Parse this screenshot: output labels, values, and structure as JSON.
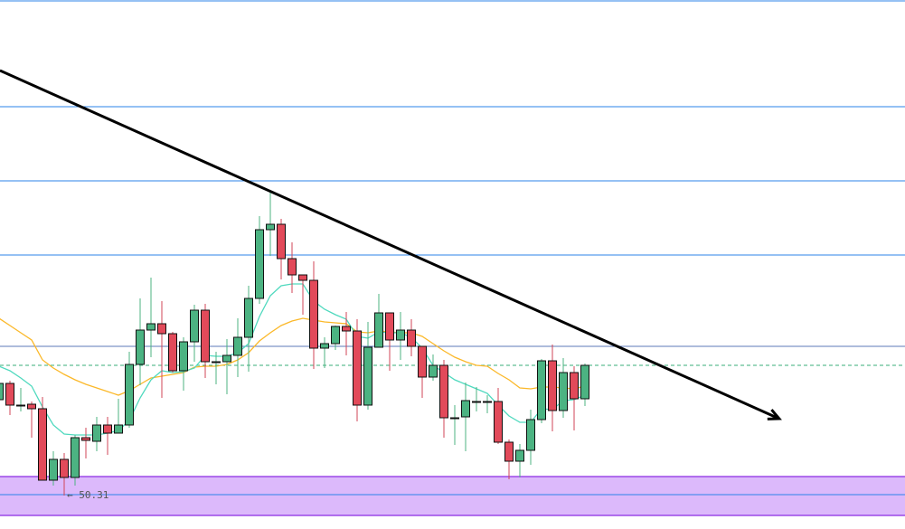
{
  "chart_data": {
    "type": "candlestick",
    "title": "",
    "xlabel": "",
    "ylabel": "",
    "ylim": [
      49.94,
      55.79
    ],
    "grid": false,
    "colors": {
      "up": "#4cb382",
      "down": "#e24a5a",
      "wick_up": "#4cb382",
      "wick_down": "#d04657",
      "ma_fast": "#4fd9be",
      "ma_slow": "#fbb829",
      "level_line": "#2b83e8",
      "resistance_line": "#5d79b8",
      "dashed_line": "#3aae7a",
      "zone_fill": "#dcb9fb",
      "zone_border": "#8a2be2",
      "trendline": "#000000"
    },
    "candles": [
      [
        51.37,
        51.59,
        51.33,
        51.55
      ],
      [
        51.55,
        51.58,
        51.2,
        51.31
      ],
      [
        51.31,
        51.5,
        51.24,
        51.31
      ],
      [
        51.32,
        51.35,
        50.95,
        51.27
      ],
      [
        51.27,
        51.4,
        50.48,
        50.48
      ],
      [
        50.48,
        50.8,
        50.42,
        50.71
      ],
      [
        50.71,
        50.78,
        50.31,
        50.51
      ],
      [
        50.51,
        50.98,
        50.42,
        50.95
      ],
      [
        50.95,
        51.06,
        50.72,
        50.92
      ],
      [
        50.91,
        51.18,
        50.8,
        51.09
      ],
      [
        51.09,
        51.18,
        50.76,
        51.0
      ],
      [
        51.0,
        51.38,
        51.0,
        51.09
      ],
      [
        51.09,
        51.9,
        51.06,
        51.76
      ],
      [
        51.76,
        52.49,
        51.53,
        52.14
      ],
      [
        52.14,
        52.72,
        51.84,
        52.21
      ],
      [
        52.21,
        52.46,
        51.39,
        52.1
      ],
      [
        52.1,
        52.12,
        51.67,
        51.69
      ],
      [
        51.69,
        52.06,
        51.47,
        52.01
      ],
      [
        52.01,
        52.42,
        51.79,
        52.36
      ],
      [
        52.36,
        52.43,
        51.61,
        51.79
      ],
      [
        51.79,
        51.9,
        51.54,
        51.79
      ],
      [
        51.79,
        52.04,
        51.43,
        51.86
      ],
      [
        51.86,
        52.27,
        51.62,
        52.06
      ],
      [
        52.06,
        52.63,
        51.68,
        52.49
      ],
      [
        52.49,
        53.4,
        52.43,
        53.25
      ],
      [
        53.25,
        53.66,
        52.96,
        53.31
      ],
      [
        53.31,
        53.37,
        52.7,
        52.93
      ],
      [
        52.93,
        53.11,
        52.55,
        52.75
      ],
      [
        52.75,
        52.75,
        52.31,
        52.69
      ],
      [
        52.69,
        52.9,
        51.71,
        51.94
      ],
      [
        51.94,
        52.06,
        51.72,
        51.99
      ],
      [
        51.99,
        52.19,
        51.92,
        52.18
      ],
      [
        52.18,
        52.34,
        51.86,
        52.13
      ],
      [
        52.13,
        52.26,
        51.13,
        51.31
      ],
      [
        51.31,
        52.23,
        51.26,
        51.95
      ],
      [
        51.95,
        52.54,
        51.95,
        52.33
      ],
      [
        52.33,
        52.33,
        51.69,
        52.03
      ],
      [
        52.03,
        52.34,
        51.81,
        52.14
      ],
      [
        52.14,
        52.26,
        51.85,
        51.96
      ],
      [
        51.96,
        51.96,
        51.39,
        51.62
      ],
      [
        51.62,
        51.87,
        51.58,
        51.75
      ],
      [
        51.75,
        51.81,
        50.95,
        51.17
      ],
      [
        51.17,
        51.31,
        50.87,
        51.17
      ],
      [
        51.18,
        51.56,
        50.8,
        51.36
      ],
      [
        51.35,
        51.51,
        51.24,
        51.35
      ],
      [
        51.35,
        51.42,
        51.22,
        51.35
      ],
      [
        51.35,
        51.5,
        50.88,
        50.9
      ],
      [
        50.9,
        50.93,
        50.49,
        50.69
      ],
      [
        50.69,
        50.88,
        50.51,
        50.81
      ],
      [
        50.81,
        51.26,
        50.65,
        51.15
      ],
      [
        51.15,
        51.82,
        51.11,
        51.8
      ],
      [
        51.8,
        51.98,
        51.02,
        51.25
      ],
      [
        51.25,
        51.83,
        51.17,
        51.67
      ],
      [
        51.67,
        51.74,
        51.03,
        51.38
      ],
      [
        51.38,
        51.77,
        51.3,
        51.75
      ]
    ],
    "ma_fast": [
      51.74,
      51.69,
      51.61,
      51.52,
      51.29,
      51.09,
      50.99,
      50.98,
      50.98,
      50.98,
      51.0,
      51.03,
      51.14,
      51.39,
      51.59,
      51.69,
      51.67,
      51.68,
      51.72,
      51.86,
      51.85,
      51.85,
      51.89,
      51.99,
      52.29,
      52.52,
      52.63,
      52.65,
      52.65,
      52.46,
      52.37,
      52.31,
      52.26,
      52.07,
      52.05,
      52.12,
      52.11,
      52.11,
      52.06,
      51.94,
      51.75,
      51.67,
      51.59,
      51.54,
      51.49,
      51.44,
      51.31,
      51.19,
      51.12,
      51.12,
      51.27,
      51.26,
      51.36,
      51.37,
      51.42
    ],
    "ma_slow": [
      52.27,
      52.19,
      52.11,
      52.03,
      51.81,
      51.72,
      51.65,
      51.59,
      51.54,
      51.5,
      51.46,
      51.42,
      51.47,
      51.54,
      51.61,
      51.63,
      51.65,
      51.67,
      51.73,
      51.74,
      51.74,
      51.76,
      51.81,
      51.89,
      52.02,
      52.11,
      52.19,
      52.24,
      52.27,
      52.25,
      52.23,
      52.22,
      52.21,
      52.12,
      52.11,
      52.13,
      52.12,
      52.11,
      52.11,
      52.07,
      51.99,
      51.91,
      51.84,
      51.79,
      51.75,
      51.74,
      51.66,
      51.59,
      51.5,
      51.49,
      51.51,
      51.51,
      51.5,
      51.49,
      51.52
    ],
    "horizontal_levels": [
      55.78,
      54.61,
      53.79,
      52.97
    ],
    "resistance_level": 51.96,
    "current_price_level": 51.75,
    "support_zone": [
      50.09,
      50.52
    ],
    "support_zone_line": 50.32,
    "trendline": {
      "start": [
        0.08,
        55.01
      ],
      "end": [
        71.9,
        51.16
      ]
    },
    "low_marker": {
      "index": 6,
      "value": 50.31,
      "label": "← 50.31"
    }
  }
}
